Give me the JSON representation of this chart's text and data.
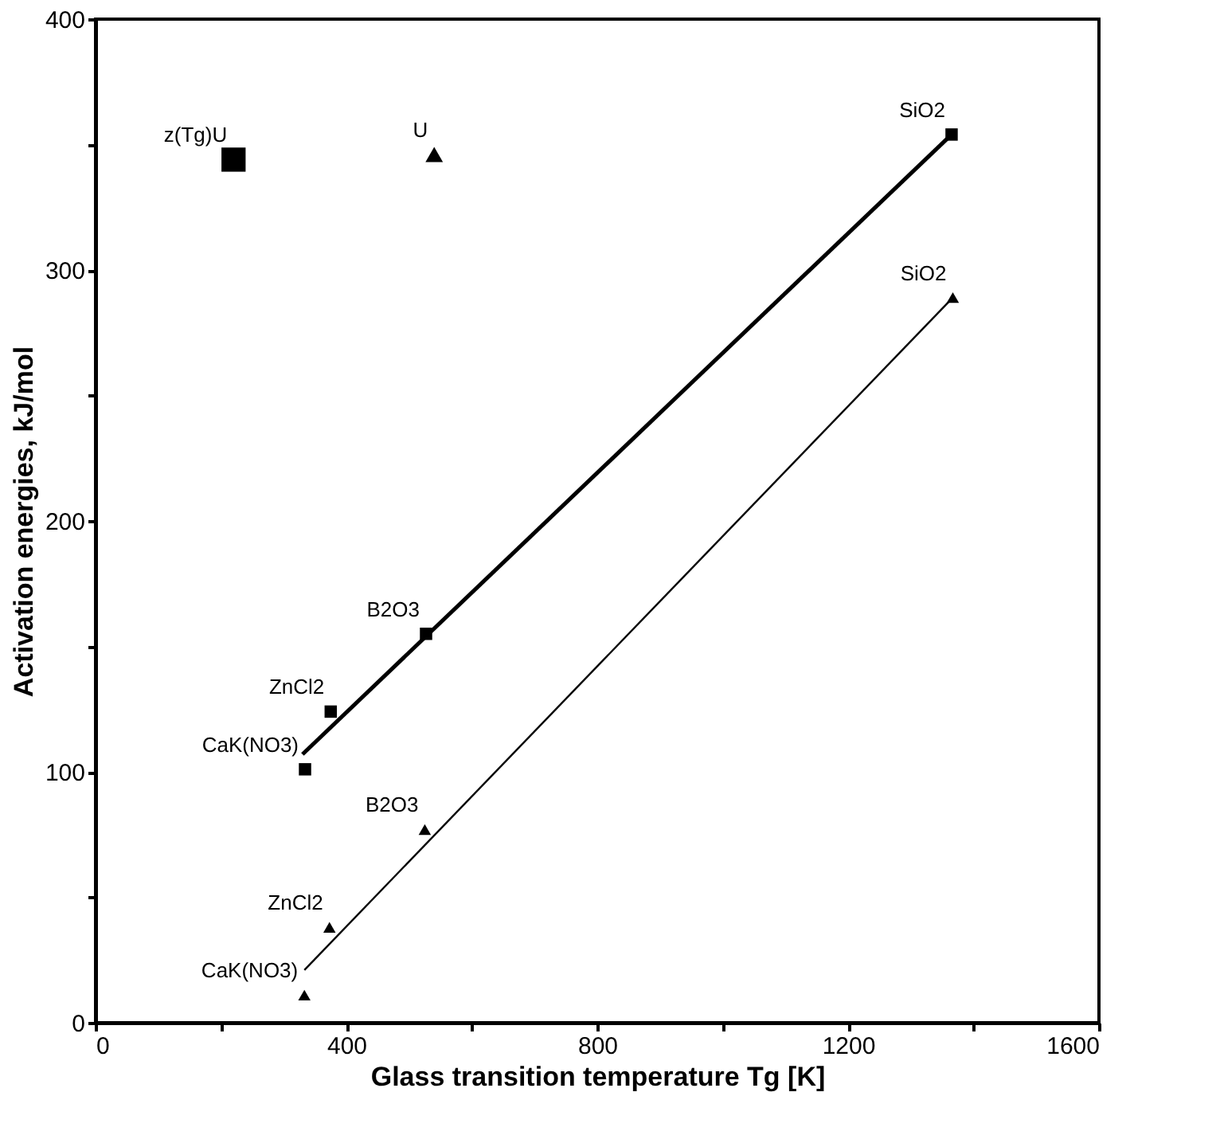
{
  "chart_data": {
    "type": "scatter",
    "xlabel": "Glass transition temperature Tg [K]",
    "ylabel": "Activation energies, kJ/mol",
    "xlim": [
      0,
      1600
    ],
    "ylim": [
      0,
      400
    ],
    "xticks": [
      0,
      {
        "value": 200,
        "label": null
      },
      400,
      {
        "value": 600,
        "label": null
      },
      800,
      {
        "value": 1000,
        "label": null
      },
      1200,
      {
        "value": 1400,
        "label": null
      },
      1600
    ],
    "yticks": [
      0,
      {
        "value": 50,
        "label": null
      },
      100,
      {
        "value": 150,
        "label": null
      },
      200,
      {
        "value": 250,
        "label": null
      },
      300,
      {
        "value": 350,
        "label": null
      },
      400
    ],
    "grid": false,
    "series": [
      {
        "marker": "square",
        "color": "#000000",
        "x": [
          334,
          375,
          527,
          1365
        ],
        "values": [
          101,
          124,
          155,
          354
        ]
      },
      {
        "marker": "triangle",
        "color": "#000000",
        "x": [
          333,
          373,
          525,
          1367
        ],
        "values": [
          11,
          38,
          77,
          289
        ]
      },
      {
        "marker": "square",
        "color": "#000000",
        "x": [
          220
        ],
        "values": [
          344
        ]
      },
      {
        "marker": "triangle",
        "color": "#000000",
        "x": [
          540
        ],
        "values": [
          346
        ]
      },
      {
        "type": "line",
        "marker": "none",
        "color": "#000000",
        "x": [
          330,
          1365
        ],
        "values": [
          107,
          354
        ]
      },
      {
        "type": "line",
        "marker": "none",
        "color": "#000000",
        "x": [
          333,
          1367
        ],
        "values": [
          21,
          289
        ]
      }
    ],
    "annotations": [
      {
        "text": "CaK(NO3)",
        "x": 334,
        "y": 101
      },
      {
        "text": "ZnCl2",
        "x": 375,
        "y": 124
      },
      {
        "text": "B2O3",
        "x": 527,
        "y": 155
      },
      {
        "text": "SiO2",
        "x": 1365,
        "y": 354
      },
      {
        "text": "CaK(NO3)",
        "x": 333,
        "y": 11
      },
      {
        "text": "ZnCl2",
        "x": 373,
        "y": 38
      },
      {
        "text": "B2O3",
        "x": 525,
        "y": 77
      },
      {
        "text": "SiO2",
        "x": 1367,
        "y": 289
      },
      {
        "text": "z(Tg)U",
        "x": 220,
        "y": 344
      },
      {
        "text": "U",
        "x": 540,
        "y": 346
      }
    ]
  }
}
